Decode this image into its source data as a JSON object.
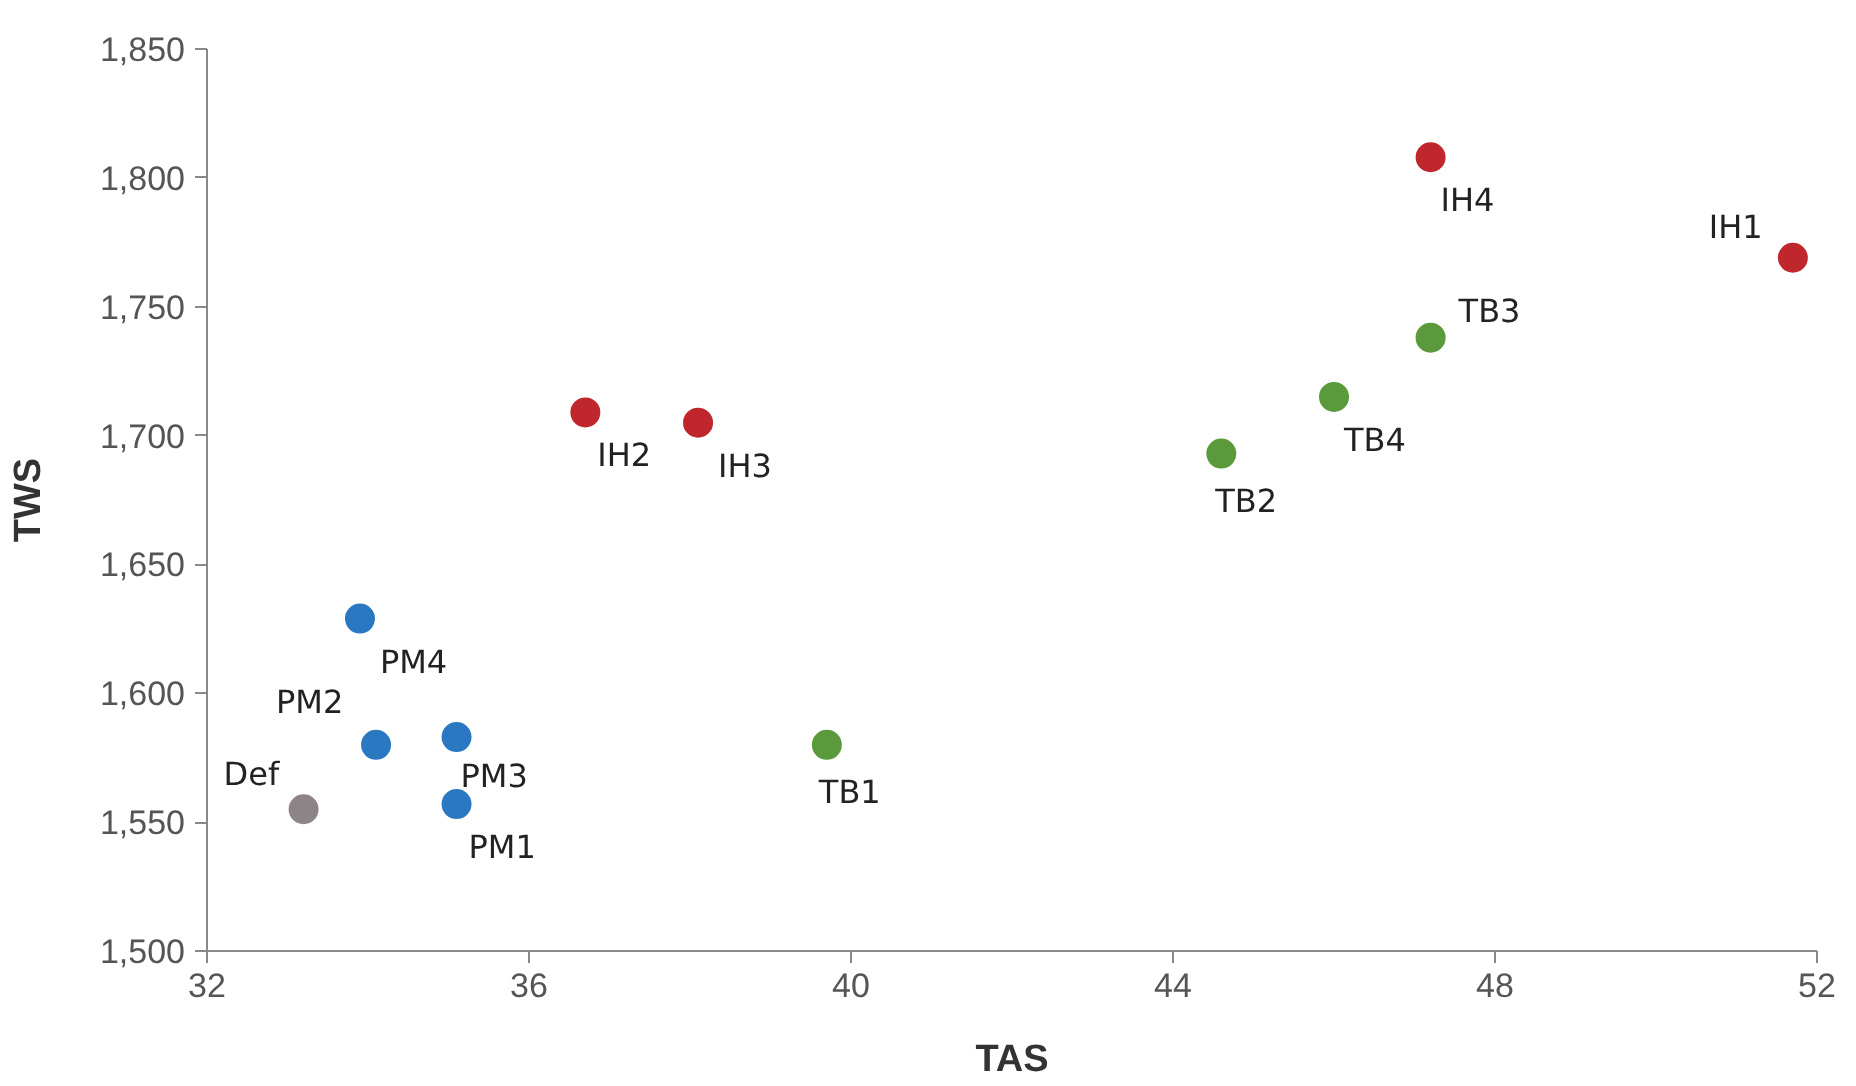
{
  "chart_data": {
    "type": "scatter",
    "xlabel": "TAS",
    "ylabel": "TWS",
    "xlim": [
      32,
      52
    ],
    "ylim": [
      1500,
      1850
    ],
    "xticks": [
      32,
      36,
      40,
      44,
      48,
      52
    ],
    "yticks": [
      {
        "value": 1500,
        "label": "1,500"
      },
      {
        "value": 1550,
        "label": "1,550"
      },
      {
        "value": 1600,
        "label": "1,600"
      },
      {
        "value": 1650,
        "label": "1,650"
      },
      {
        "value": 1700,
        "label": "1,700"
      },
      {
        "value": 1750,
        "label": "1,750"
      },
      {
        "value": 1800,
        "label": "1,800"
      },
      {
        "value": 1850,
        "label": "1,850"
      }
    ],
    "grid": false,
    "marker": "circle",
    "series": [
      {
        "color": "#c0272d",
        "x": [
          47.2,
          51.7,
          36.7,
          38.1
        ],
        "values": [
          1808,
          1769,
          1709,
          1705
        ]
      },
      {
        "color": "#5a9a3c",
        "x": [
          47.2,
          46.0,
          44.6,
          39.7
        ],
        "values": [
          1738,
          1715,
          1693,
          1580
        ]
      },
      {
        "color": "#2a78c2",
        "x": [
          33.9,
          34.1,
          35.1,
          35.1
        ],
        "values": [
          1629,
          1580,
          1583,
          1557
        ]
      },
      {
        "color": "#8c8489",
        "x": [
          33.2
        ],
        "values": [
          1555
        ]
      }
    ],
    "annotations": [
      {
        "text": "IH4",
        "x": 47.2,
        "y": 1808
      },
      {
        "text": "IH1",
        "x": 51.7,
        "y": 1769
      },
      {
        "text": "TB3",
        "x": 47.2,
        "y": 1738
      },
      {
        "text": "TB4",
        "x": 46.0,
        "y": 1715
      },
      {
        "text": "TB2",
        "x": 44.6,
        "y": 1693
      },
      {
        "text": "IH2",
        "x": 36.7,
        "y": 1709
      },
      {
        "text": "IH3",
        "x": 38.1,
        "y": 1705
      },
      {
        "text": "PM4",
        "x": 33.9,
        "y": 1629
      },
      {
        "text": "PM2",
        "x": 34.1,
        "y": 1580
      },
      {
        "text": "PM3",
        "x": 35.1,
        "y": 1583
      },
      {
        "text": "PM1",
        "x": 35.1,
        "y": 1557
      },
      {
        "text": "Def",
        "x": 33.2,
        "y": 1555
      },
      {
        "text": "TB1",
        "x": 39.7,
        "y": 1580
      }
    ]
  }
}
